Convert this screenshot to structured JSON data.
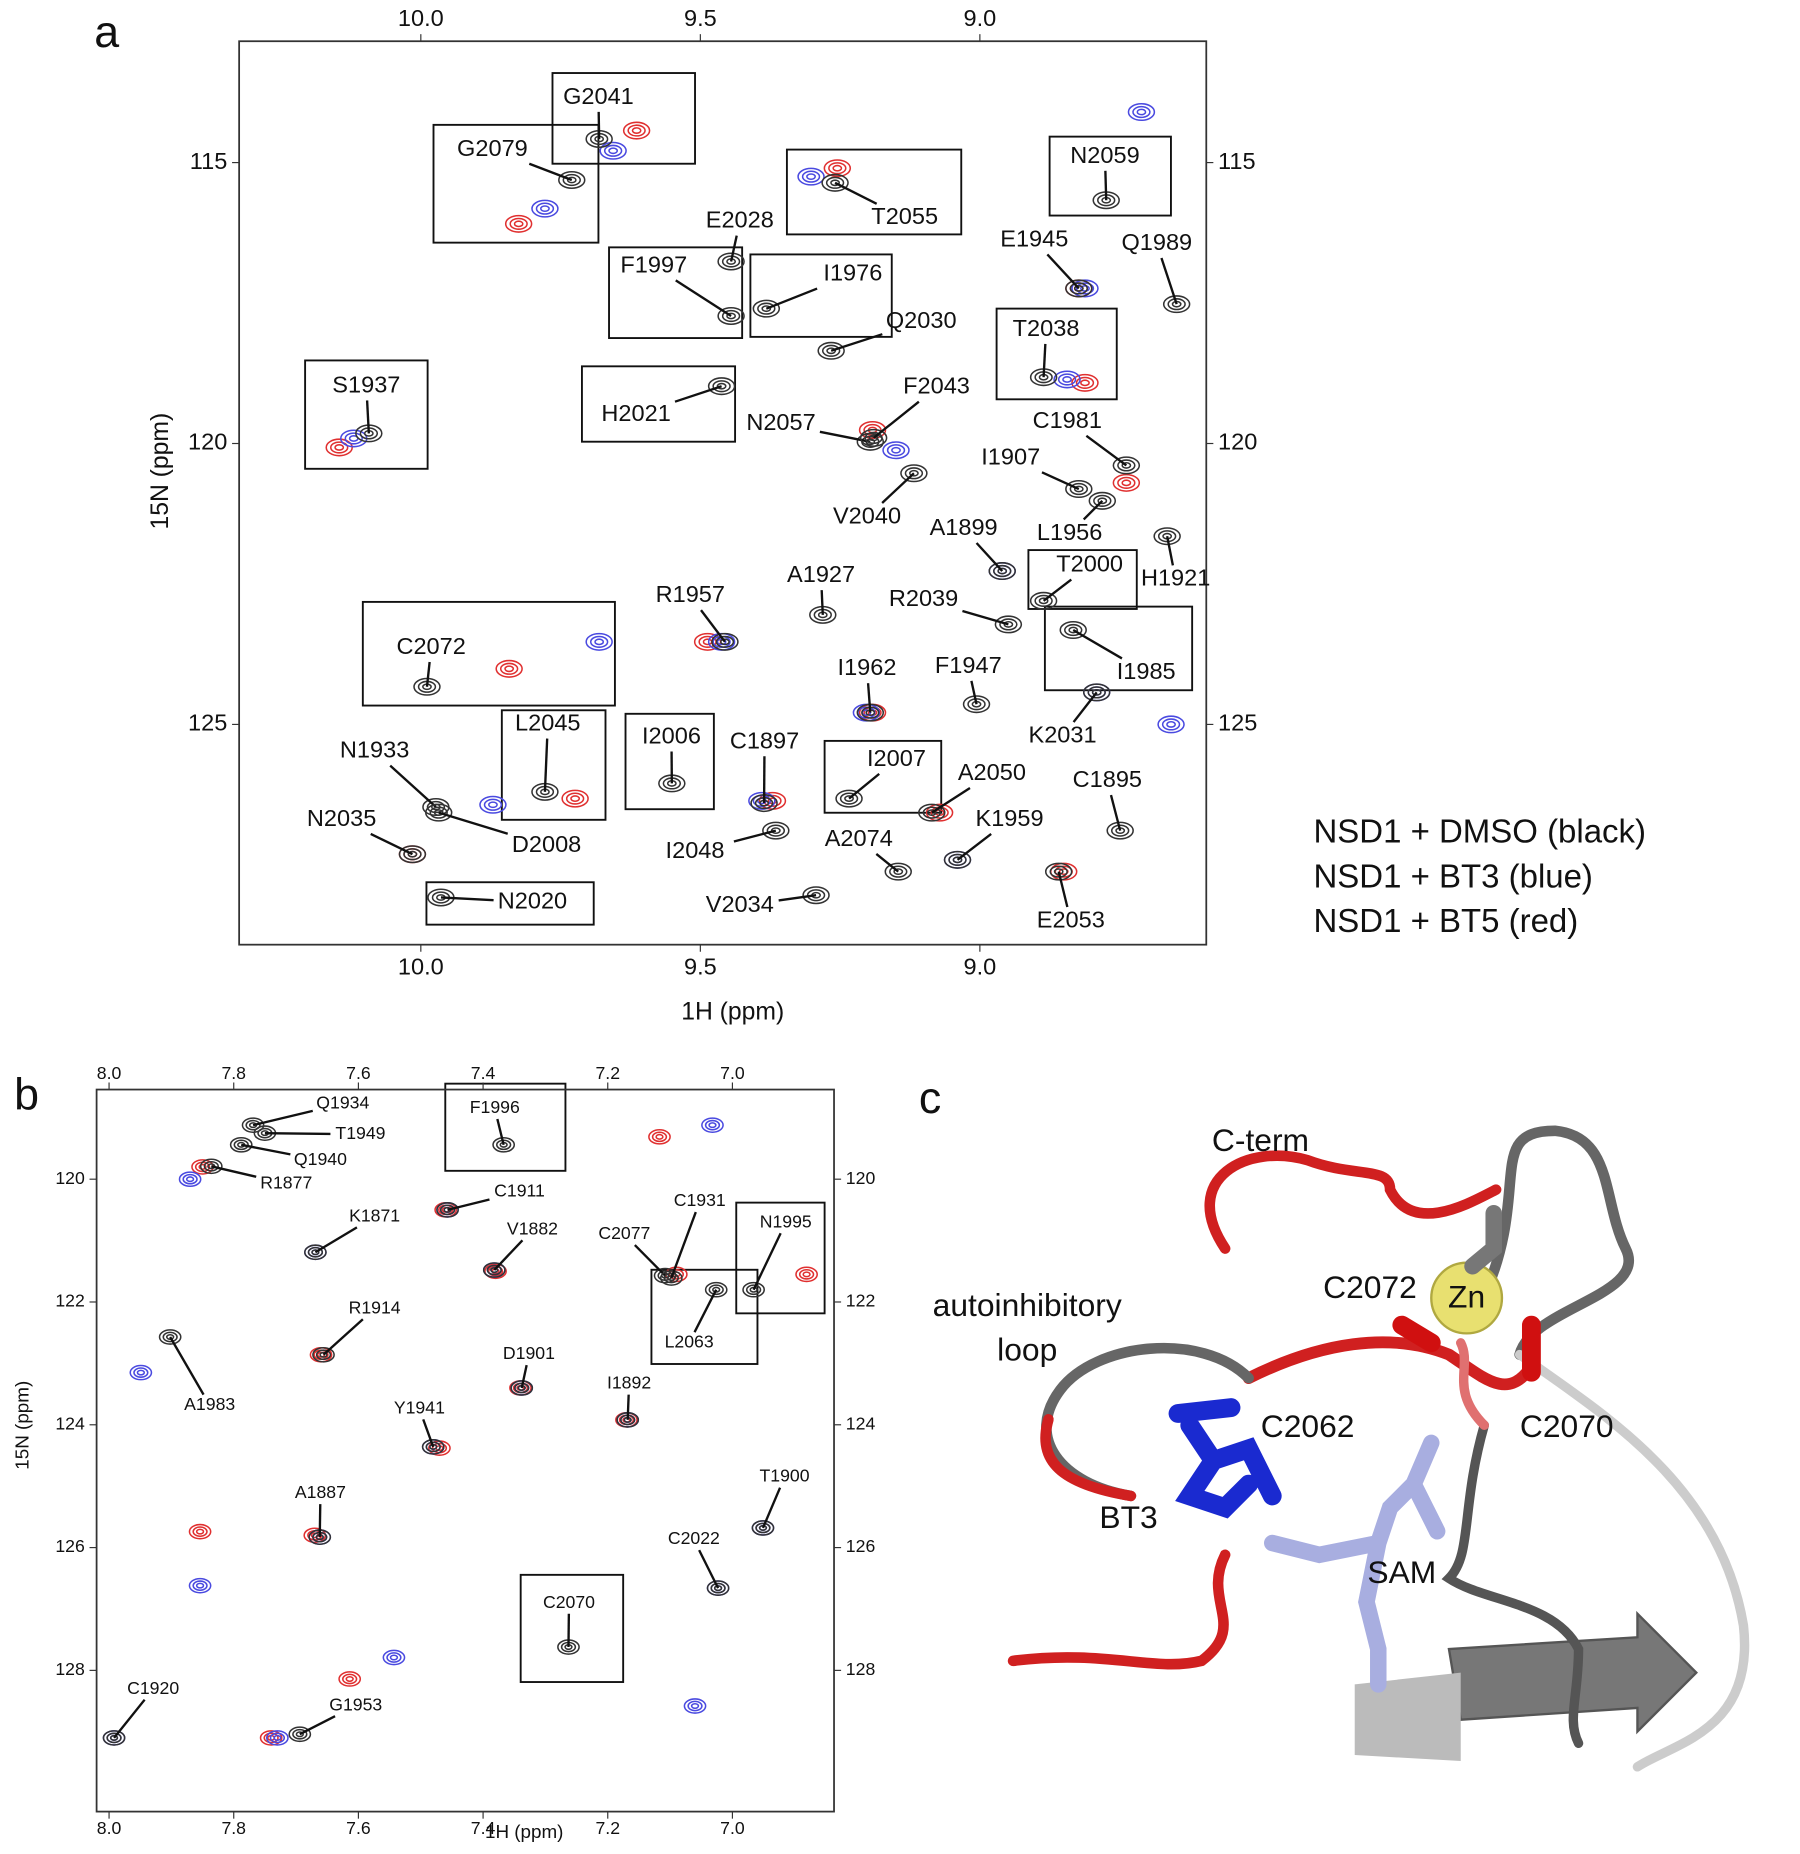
{
  "chart_data": [
    {
      "type": "scatter",
      "label": "a",
      "x_label": "1H (ppm)",
      "y_label": "15N (ppm)",
      "xlim": [
        10.325,
        8.595
      ],
      "ylim": [
        112.84,
        128.92
      ],
      "y_inverted": true,
      "xticks": [
        {
          "value": 10,
          "label": "10.0"
        },
        9.5,
        {
          "value": 9,
          "label": "9.0"
        }
      ],
      "yticks": [
        115,
        120,
        125
      ],
      "series": [
        {
          "name": "NSD1 + DMSO (black)",
          "color": "#333333",
          "labels": [
            "G2041",
            "G2079",
            "N2059",
            "T2055",
            "E2028",
            "F1997",
            "I1976",
            "E1945",
            "Q1989",
            "Q2030",
            "T2038",
            "S1937",
            "H2021",
            "N2057",
            "F2043",
            "C1981",
            "I1907",
            "V2040",
            "L1956",
            "A1899",
            "H1921",
            "T2000",
            "R2039",
            "A1927",
            "R1957",
            "C2072",
            "I1985",
            "I1962",
            "F1947",
            "K2031",
            "L2045",
            "I2006",
            "C1897",
            "N1933",
            "D2008",
            "I2007",
            "A2050",
            "C1895",
            "N2035",
            "I2048",
            "A2074",
            "K1959",
            "E2053",
            "V2034",
            "N2020"
          ],
          "x": [
            9.681,
            9.73,
            8.774,
            9.259,
            9.445,
            9.445,
            9.382,
            8.823,
            8.648,
            9.266,
            8.886,
            10.093,
            9.462,
            9.196,
            9.19,
            8.738,
            8.823,
            9.118,
            8.781,
            8.96,
            8.665,
            8.886,
            8.949,
            9.281,
            9.456,
            9.989,
            8.833,
            9.196,
            9.006,
            8.791,
            9.778,
            9.551,
            9.386,
            9.973,
            9.968,
            9.234,
            9.086,
            8.749,
            10.015,
            9.365,
            9.146,
            9.04,
            8.859,
            9.293,
            9.964
          ],
          "y": [
            114.58,
            115.31,
            115.67,
            115.36,
            116.76,
            117.73,
            117.6,
            117.24,
            117.52,
            118.35,
            118.82,
            119.82,
            118.98,
            119.97,
            119.9,
            120.39,
            120.81,
            120.53,
            121.02,
            122.27,
            121.65,
            122.8,
            123.22,
            123.05,
            123.53,
            124.33,
            123.32,
            124.79,
            124.64,
            124.43,
            126.2,
            126.05,
            126.4,
            126.47,
            126.57,
            126.32,
            126.57,
            126.89,
            127.31,
            126.89,
            127.62,
            127.41,
            127.62,
            128.04,
            128.08
          ]
        },
        {
          "name": "NSD1 + BT3 (blue)",
          "color": "#4a4ae0",
          "x": [
            9.656,
            9.778,
            9.302,
            10.12,
            9.681,
            9.15,
            8.844,
            8.812,
            8.96,
            9.462,
            9.203,
            8.791,
            9.39,
            9.04,
            8.711,
            9.871,
            8.658
          ],
          "y": [
            114.79,
            115.82,
            115.25,
            119.91,
            123.53,
            120.12,
            118.86,
            117.24,
            122.27,
            123.53,
            124.79,
            124.43,
            126.36,
            127.41,
            114.1,
            126.43,
            125.0
          ]
        },
        {
          "name": "NSD1 + BT5 (red)",
          "color": "#e03030",
          "x": [
            9.614,
            9.825,
            9.255,
            10.146,
            9.842,
            9.192,
            8.812,
            8.823,
            9.487,
            9.192,
            9.371,
            9.072,
            10.015,
            8.85,
            8.738,
            9.724
          ],
          "y": [
            114.43,
            116.09,
            115.1,
            120.07,
            124.01,
            119.76,
            118.92,
            117.24,
            123.53,
            124.79,
            126.36,
            126.57,
            127.31,
            127.62,
            120.7,
            126.32
          ]
        }
      ]
    },
    {
      "type": "scatter",
      "label": "b",
      "x_label": "1H (ppm)",
      "y_label": "15N (ppm)",
      "xlim": [
        8.02,
        6.837
      ],
      "ylim": [
        118.54,
        130.3
      ],
      "y_inverted": true,
      "xticks": [
        {
          "value": 8,
          "label": "8.0"
        },
        7.8,
        7.6,
        7.4,
        7.2,
        {
          "value": 7,
          "label": "7.0"
        }
      ],
      "yticks": [
        120,
        122,
        124,
        126,
        128
      ],
      "series": [
        {
          "name": "NSD1 + DMSO (black)",
          "color": "#333333",
          "labels": [
            "Q1934",
            "T1949",
            "Q1940",
            "R1877",
            "F1996",
            "C1911",
            "K1871",
            "V1882",
            "C2077",
            "C1931",
            "N1995",
            "L2063",
            "R1914",
            "A1983",
            "D1901",
            "I1892",
            "Y1941",
            "T1900",
            "A1887",
            "C2022",
            "C2070",
            "C1920",
            "G1953"
          ],
          "x": [
            7.769,
            7.75,
            7.788,
            7.836,
            7.367,
            7.457,
            7.669,
            7.382,
            7.108,
            7.098,
            6.966,
            7.026,
            7.656,
            7.902,
            7.338,
            7.168,
            7.48,
            6.951,
            7.662,
            7.023,
            7.263,
            7.992,
            7.694
          ],
          "y": [
            119.12,
            119.25,
            119.44,
            119.79,
            119.44,
            120.5,
            121.19,
            121.48,
            121.57,
            121.61,
            121.8,
            121.8,
            122.86,
            122.57,
            123.4,
            123.92,
            124.36,
            125.68,
            125.83,
            126.66,
            127.62,
            129.1,
            129.04
          ]
        },
        {
          "name": "NSD1 + BT3 (blue)",
          "color": "#4a4ae0",
          "x": [
            7.669,
            7.457,
            7.382,
            7.338,
            7.168,
            7.48,
            7.662,
            7.023,
            6.951,
            7.854,
            7.543,
            7.032,
            7.06,
            7.949,
            7.992,
            7.73,
            7.87
          ],
          "y": [
            121.19,
            120.5,
            121.48,
            123.4,
            123.92,
            124.36,
            125.83,
            126.66,
            125.68,
            126.62,
            127.79,
            119.12,
            128.58,
            123.15,
            129.1,
            129.1,
            120.0
          ]
        },
        {
          "name": "NSD1 + BT5 (red)",
          "color": "#e03030",
          "x": [
            7.117,
            6.881,
            7.854,
            7.614,
            7.46,
            7.38,
            7.09,
            7.66,
            7.34,
            7.17,
            7.47,
            7.67,
            7.74,
            7.85
          ],
          "y": [
            119.31,
            121.55,
            125.74,
            128.14,
            120.5,
            121.5,
            121.55,
            122.86,
            123.4,
            123.92,
            124.38,
            125.8,
            129.1,
            119.8
          ]
        }
      ]
    }
  ],
  "panel_c": {
    "label": "c",
    "texts": [
      "C-term",
      "autoinhibitory",
      "loop",
      "C2072",
      "Zn",
      "C2062",
      "C2070",
      "BT3",
      "SAM"
    ]
  }
}
